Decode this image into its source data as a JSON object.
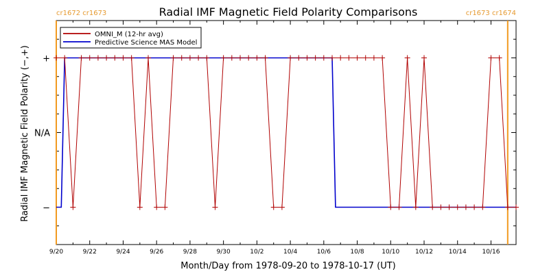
{
  "chart_data": {
    "type": "line",
    "title": "Radial IMF Magnetic Field Polarity Comparisons",
    "xlabel": "Month/Day from 1978-09-20 to 1978-10-17 (UT)",
    "ylabel": "Radial IMF Magnetic Field Polarity (−,+)",
    "x_tick_labels": [
      "9/20",
      "9/22",
      "9/24",
      "9/26",
      "9/28",
      "9/30",
      "10/2",
      "10/4",
      "10/6",
      "10/8",
      "10/10",
      "10/12",
      "10/14",
      "10/16"
    ],
    "y_tick_labels": {
      "plus": "+",
      "na": "N/A",
      "minus": "−"
    },
    "carrington_labels": {
      "left": "cr1672 cr1673",
      "right": "cr1673 cr1674"
    },
    "xlim_days": [
      0,
      27.5
    ],
    "ylim": [
      -1.5,
      1.5
    ],
    "y_encoding": {
      "+": 1,
      "N/A": 0,
      "-": -1
    },
    "carrington_rotation_days": [
      0,
      27.0
    ],
    "legend": {
      "placement": "top-left",
      "entries": [
        {
          "label": "OMNI_M (12-hr avg)",
          "color": "#b00000"
        },
        {
          "label": "Predictive Science MAS Model",
          "color": "#0000cc"
        }
      ]
    },
    "series": [
      {
        "name": "OMNI_M (12-hr avg)",
        "color": "#b00000",
        "marker": "+",
        "x_days": [
          0.0,
          0.5,
          1.0,
          1.5,
          2.0,
          2.5,
          3.0,
          3.5,
          4.0,
          4.5,
          5.0,
          5.5,
          6.0,
          6.5,
          7.0,
          7.5,
          8.0,
          8.5,
          9.0,
          9.5,
          10.0,
          10.5,
          11.0,
          11.5,
          12.0,
          12.5,
          13.0,
          13.5,
          14.0,
          14.5,
          15.0,
          15.5,
          16.0,
          16.5,
          17.0,
          17.5,
          18.0,
          18.5,
          19.0,
          19.5,
          20.0,
          20.5,
          21.0,
          21.5,
          22.0,
          22.5,
          23.0,
          23.5,
          24.0,
          24.5,
          25.0,
          25.5,
          26.0,
          26.5,
          27.0,
          27.5
        ],
        "values": [
          1,
          1,
          -1,
          1,
          1,
          1,
          1,
          1,
          1,
          1,
          -1,
          1,
          -1,
          -1,
          1,
          1,
          1,
          1,
          1,
          -1,
          1,
          1,
          1,
          1,
          1,
          1,
          -1,
          -1,
          1,
          1,
          1,
          1,
          1,
          1,
          1,
          1,
          1,
          1,
          1,
          1,
          -1,
          -1,
          1,
          -1,
          1,
          -1,
          -1,
          -1,
          -1,
          -1,
          -1,
          -1,
          1,
          1,
          -1,
          -1
        ]
      },
      {
        "name": "Predictive Science MAS Model",
        "color": "#0000cc",
        "x_days": [
          0.0,
          0.3,
          0.5,
          16.5,
          16.7,
          27.5
        ],
        "values": [
          -1,
          -1,
          1,
          1,
          -1,
          -1
        ]
      }
    ]
  }
}
